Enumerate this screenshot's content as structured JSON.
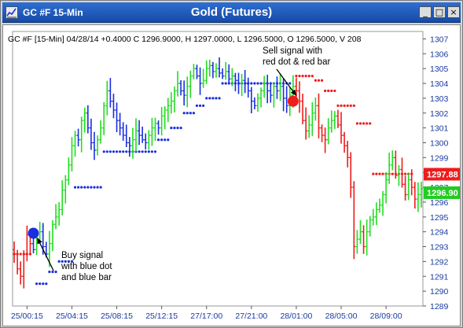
{
  "window": {
    "title": "GC #F 15-Min",
    "chart_title": "Gold (Futures)",
    "buttons": {
      "minimize": "_",
      "maximize": "□",
      "close": "×"
    }
  },
  "chart_data": {
    "type": "ohlc",
    "header": "GC #F [15-Min] 04/28/14 +0.4000 C 1296.9000, H 1297.0000, L 1296.5000, O 1296.5000, V 208",
    "ylim": [
      1289,
      1307.5
    ],
    "y_ticks": [
      1289,
      1290,
      1291,
      1292,
      1293,
      1294,
      1295,
      1296,
      1297,
      1298,
      1299,
      1300,
      1301,
      1302,
      1303,
      1304,
      1305,
      1306,
      1307
    ],
    "x_ticks": [
      {
        "i": 4,
        "label": "25/00:15"
      },
      {
        "i": 18,
        "label": "25/04:15"
      },
      {
        "i": 32,
        "label": "25/08:15"
      },
      {
        "i": 46,
        "label": "25/12:15"
      },
      {
        "i": 60,
        "label": "27/17:00"
      },
      {
        "i": 74,
        "label": "27/21:00"
      },
      {
        "i": 88,
        "label": "28/01:00"
      },
      {
        "i": 102,
        "label": "28/05:00"
      },
      {
        "i": 116,
        "label": "28/09:00"
      }
    ],
    "n_bars": 128,
    "closes": [
      1292.5,
      1291.5,
      1291.0,
      1292.5,
      1293.8,
      1293.2,
      1292.8,
      1293.5,
      1294.0,
      1293.0,
      1292.5,
      1293.2,
      1294.5,
      1295.0,
      1295.5,
      1296.8,
      1297.5,
      1298.5,
      1299.8,
      1300.5,
      1300.2,
      1301.5,
      1302.0,
      1301.0,
      1300.0,
      1299.5,
      1300.2,
      1301.0,
      1302.5,
      1303.5,
      1302.8,
      1302.2,
      1301.5,
      1301.0,
      1300.5,
      1300.0,
      1299.8,
      1300.2,
      1300.8,
      1300.5,
      1300.2,
      1300.0,
      1300.5,
      1301.0,
      1301.3,
      1301.0,
      1301.8,
      1302.2,
      1302.5,
      1302.8,
      1303.5,
      1304.0,
      1303.5,
      1303.2,
      1303.8,
      1304.5,
      1305.0,
      1304.5,
      1304.0,
      1304.2,
      1305.0,
      1305.2,
      1304.8,
      1305.0,
      1304.7,
      1304.5,
      1304.8,
      1304.3,
      1304.5,
      1304.2,
      1304.0,
      1304.2,
      1304.0,
      1303.5,
      1302.8,
      1302.5,
      1303.0,
      1303.5,
      1304.0,
      1303.5,
      1303.2,
      1303.8,
      1303.5,
      1303.8,
      1303.0,
      1302.5,
      1303.2,
      1303.8,
      1303.5,
      1302.8,
      1301.5,
      1300.8,
      1301.2,
      1302.0,
      1302.5,
      1301.0,
      1300.5,
      1300.2,
      1301.0,
      1301.5,
      1301.8,
      1301.2,
      1300.5,
      1299.8,
      1299.0,
      1297.0,
      1293.0,
      1293.5,
      1294.0,
      1293.0,
      1294.0,
      1294.8,
      1295.0,
      1295.5,
      1295.8,
      1296.5,
      1297.5,
      1298.5,
      1299.0,
      1297.8,
      1298.2,
      1297.2,
      1296.5,
      1297.5,
      1297.0,
      1296.2,
      1296.5,
      1296.9
    ],
    "signals": [
      {
        "i": 6,
        "type": "buy",
        "price": 1293.9,
        "color": "#1a2fe0",
        "label": "Buy signal with blue dot and blue bar"
      },
      {
        "i": 87,
        "type": "sell",
        "price": 1302.8,
        "color": "#ee1c1c",
        "label": "Sell signal with red dot & red bar"
      }
    ],
    "price_labels": [
      {
        "value": "1297.88",
        "color": "#ee1c1c"
      },
      {
        "value": "1296.90",
        "color": "#22cc22"
      }
    ],
    "colors": {
      "up_trend": "#22dd22",
      "blue_trend": "#1a2fe0",
      "red_trend": "#ee1c1c",
      "dots_blue": "#1a2fe0",
      "dots_red": "#ee1c1c"
    }
  },
  "annotations": {
    "buy": [
      "Buy signal",
      "with blue dot",
      "and blue bar"
    ],
    "sell": [
      "Sell signal with",
      "red dot & red bar"
    ]
  }
}
